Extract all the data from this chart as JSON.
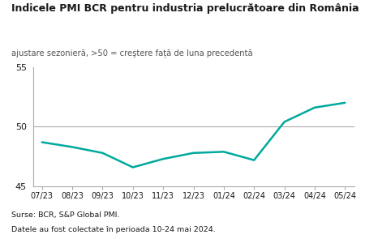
{
  "title": "Indicele PMI BCR pentru industria prelucrătoare din România",
  "subtitle": "ajustare sezonieră, >50 = creştere față de luna precedentă",
  "x_labels": [
    "07/23",
    "08/23",
    "09/23",
    "10/23",
    "11/23",
    "12/23",
    "01/24",
    "02/24",
    "03/24",
    "04/24",
    "05/24"
  ],
  "y_values": [
    48.7,
    48.3,
    47.8,
    46.6,
    47.3,
    47.8,
    47.9,
    47.2,
    50.4,
    51.6,
    52.0
  ],
  "line_color": "#00a99d",
  "ylim": [
    45,
    55
  ],
  "yticks": [
    45,
    50,
    55
  ],
  "reference_line": 50,
  "footnote1": "Surse: BCR, S&P Global PMI.",
  "footnote2": "Datele au fost colectate în perioada 10-24 mai 2024.",
  "bg_color": "#ffffff",
  "title_color": "#1a1a1a",
  "subtitle_color": "#555555",
  "axis_color": "#aaaaaa",
  "line_width": 1.8
}
